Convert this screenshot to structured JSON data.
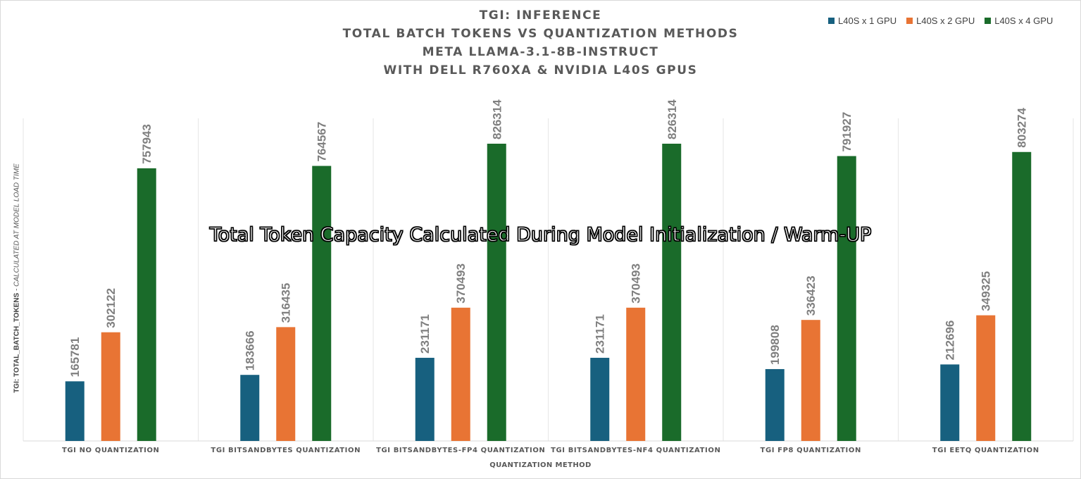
{
  "chart_data": {
    "type": "bar",
    "title_lines": [
      "TGI: INFERENCE",
      "TOTAL BATCH TOKENS VS QUANTIZATION METHODS",
      "META LLAMA-3.1-8B-INSTRUCT",
      "WITH DELL R760XA & NVIDIA L40S GPUS"
    ],
    "ylabel_main": "TGI: TOTAL_BATCH_TOKENS",
    "ylabel_sub": " - CALCULATED AT MODEL LOAD TIME",
    "xlabel": "QUANTIZATION METHOD",
    "overlay_text": "Total Token Capacity Calculated During Model Initialization / Warm-UP",
    "categories": [
      "TGI NO QUANTIZATION",
      "TGI BITSANDBYTES QUANTIZATION",
      "TGI BITSANDBYTES-FP4 QUANTIZATION",
      "TGI BITSANDBYTES-NF4 QUANTIZATION",
      "TGI FP8 QUANTIZATION",
      "TGI EETQ QUANTIZATION"
    ],
    "series": [
      {
        "name": "L40S x 1 GPU",
        "color": "#17607f",
        "values": [
          165781,
          183666,
          231171,
          231171,
          199808,
          212696
        ]
      },
      {
        "name": "L40S x 2 GPU",
        "color": "#e87434",
        "values": [
          302122,
          316435,
          370493,
          370493,
          336423,
          349325
        ]
      },
      {
        "name": "L40S x 4 GPU",
        "color": "#1a6b2a",
        "values": [
          757943,
          764567,
          826314,
          826314,
          791927,
          803274
        ]
      }
    ],
    "ylim": [
      0,
      1000000
    ],
    "grid": false,
    "legend_position": "top-right"
  }
}
